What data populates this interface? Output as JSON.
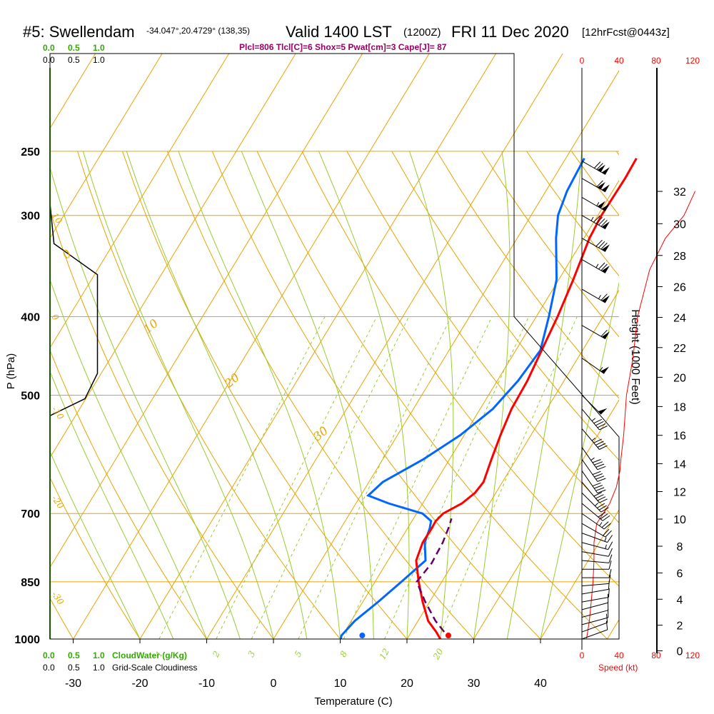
{
  "header": {
    "station": "#5: Swellendam",
    "coords": "-34.047°,20.4729° (138,35)",
    "valid_main": "Valid 1400 LST",
    "valid_z": "(1200Z)",
    "date": "FRI 11 Dec 2020",
    "forecast": "[12hrFcst@0443z]"
  },
  "stats_line": "Plcl=806 Tlcl[C]=6 Shox=5 Pwat[cm]=3 Cape[J]= 87",
  "left_scales": {
    "cloudwater_ticks": [
      "0.0",
      "0.5",
      "1.0"
    ],
    "cloudiness_ticks": [
      "0.0",
      "0.5",
      "1.0"
    ],
    "cloudwater_label": "CloudWater (g/Kg)",
    "cloudiness_label": "Grid-Scale Cloudiness"
  },
  "speed_scale": {
    "ticks": [
      "0",
      "40",
      "80",
      "120"
    ],
    "label": "Speed (kt)"
  },
  "colors": {
    "isotherm": "#e8a400",
    "dry_adiabat": "#e8a400",
    "moist_adiabat": "#99cc33",
    "mixing_ratio": "#99cc33",
    "temperature": "#ff0000",
    "dewpoint": "#0066ff",
    "parcel": "#660066",
    "cloud_green": "#33aa00",
    "speed_red": "#ff0000"
  },
  "chart_data": {
    "type": "line",
    "title": "",
    "xlabel": "Temperature (C)",
    "ylabel": "P (hPa)",
    "y2label": "Height (1000 Feet)",
    "x_ticks": [
      -30,
      -20,
      -10,
      0,
      10,
      20,
      30,
      40
    ],
    "p_ticks": [
      250,
      300,
      400,
      500,
      700,
      850,
      1000
    ],
    "height_ticks": [
      0,
      2,
      4,
      6,
      8,
      10,
      12,
      14,
      16,
      18,
      20,
      22,
      24,
      26,
      28,
      30,
      32
    ],
    "isotherm_labels": [
      {
        "text": "10",
        "p": 300
      },
      {
        "text": "0",
        "p": 400
      },
      {
        "text": "-10",
        "p": 520
      },
      {
        "text": "-20",
        "p": 670
      },
      {
        "text": "-30",
        "p": 880
      }
    ],
    "dry_adiabat_labels": [
      {
        "text": "0",
        "p": 340
      },
      {
        "text": "10",
        "p": 420
      },
      {
        "text": "20",
        "p": 490
      },
      {
        "text": "30",
        "p": 570
      }
    ],
    "mixing_ratio_labels": [
      "1",
      "2",
      "3",
      "5",
      "8",
      "12",
      "20"
    ],
    "temperature": [
      [
        1000,
        25
      ],
      [
        980,
        23.6
      ],
      [
        950,
        21.2
      ],
      [
        900,
        18.3
      ],
      [
        850,
        15.5
      ],
      [
        800,
        12.8
      ],
      [
        760,
        11.8
      ],
      [
        730,
        11.6
      ],
      [
        715,
        11.4
      ],
      [
        700,
        11.7
      ],
      [
        680,
        13.4
      ],
      [
        660,
        14.2
      ],
      [
        640,
        14.3
      ],
      [
        600,
        13.0
      ],
      [
        560,
        11.7
      ],
      [
        520,
        10.5
      ],
      [
        480,
        9.8
      ],
      [
        440,
        8.6
      ],
      [
        400,
        7.3
      ],
      [
        360,
        5.6
      ],
      [
        320,
        3.5
      ],
      [
        300,
        2.8
      ],
      [
        270,
        2.3
      ],
      [
        255,
        1.8
      ]
    ],
    "dewpoint": [
      [
        1000,
        10.1
      ],
      [
        990,
        9.8
      ],
      [
        950,
        10.2
      ],
      [
        900,
        11.6
      ],
      [
        850,
        12.9
      ],
      [
        800,
        14.2
      ],
      [
        760,
        12.1
      ],
      [
        730,
        11.3
      ],
      [
        715,
        10.7
      ],
      [
        700,
        8.6
      ],
      [
        680,
        2.4
      ],
      [
        665,
        -1.5
      ],
      [
        640,
        -0.8
      ],
      [
        600,
        2.8
      ],
      [
        560,
        5.7
      ],
      [
        520,
        7.7
      ],
      [
        480,
        8.4
      ],
      [
        440,
        8.4
      ],
      [
        400,
        6.0
      ],
      [
        360,
        3.1
      ],
      [
        320,
        -1.5
      ],
      [
        300,
        -3.7
      ],
      [
        280,
        -5.0
      ],
      [
        270,
        -5.4
      ],
      [
        255,
        -6.0
      ]
    ],
    "parcel": [
      [
        980,
        24.8
      ],
      [
        950,
        22.3
      ],
      [
        900,
        18.7
      ],
      [
        850,
        15.2
      ],
      [
        806,
        15.4
      ],
      [
        760,
        14.8
      ],
      [
        730,
        14.1
      ],
      [
        710,
        13.5
      ]
    ],
    "surface_markers": {
      "temperature": 26.2,
      "dewpoint": 13.3
    },
    "cloudiness_profile": [
      [
        1000,
        0
      ],
      [
        530,
        0
      ],
      [
        505,
        0.7
      ],
      [
        470,
        0.95
      ],
      [
        400,
        0.95
      ],
      [
        355,
        0.95
      ],
      [
        325,
        0.08
      ],
      [
        290,
        0
      ]
    ],
    "wind_speed_kt": [
      [
        1000,
        5
      ],
      [
        950,
        8
      ],
      [
        900,
        10
      ],
      [
        850,
        12
      ],
      [
        800,
        13
      ],
      [
        760,
        13
      ],
      [
        720,
        16
      ],
      [
        700,
        23
      ],
      [
        680,
        30
      ],
      [
        650,
        37
      ],
      [
        620,
        41
      ],
      [
        600,
        42
      ],
      [
        560,
        45
      ],
      [
        500,
        48
      ],
      [
        450,
        55
      ],
      [
        400,
        60
      ],
      [
        350,
        73
      ],
      [
        320,
        90
      ],
      [
        300,
        110
      ],
      [
        280,
        122
      ]
    ],
    "wind_barbs": [
      {
        "p": 1000,
        "dir": 250,
        "spd": 10
      },
      {
        "p": 980,
        "dir": 250,
        "spd": 10
      },
      {
        "p": 960,
        "dir": 255,
        "spd": 10
      },
      {
        "p": 940,
        "dir": 255,
        "spd": 10
      },
      {
        "p": 920,
        "dir": 255,
        "spd": 10
      },
      {
        "p": 900,
        "dir": 260,
        "spd": 10
      },
      {
        "p": 880,
        "dir": 260,
        "spd": 10
      },
      {
        "p": 860,
        "dir": 265,
        "spd": 10
      },
      {
        "p": 840,
        "dir": 270,
        "spd": 10
      },
      {
        "p": 820,
        "dir": 270,
        "spd": 10
      },
      {
        "p": 800,
        "dir": 275,
        "spd": 10
      },
      {
        "p": 780,
        "dir": 280,
        "spd": 10
      },
      {
        "p": 760,
        "dir": 285,
        "spd": 15
      },
      {
        "p": 740,
        "dir": 290,
        "spd": 15
      },
      {
        "p": 720,
        "dir": 300,
        "spd": 20
      },
      {
        "p": 700,
        "dir": 305,
        "spd": 25
      },
      {
        "p": 680,
        "dir": 310,
        "spd": 30
      },
      {
        "p": 660,
        "dir": 315,
        "spd": 35
      },
      {
        "p": 640,
        "dir": 320,
        "spd": 40
      },
      {
        "p": 620,
        "dir": 325,
        "spd": 40
      },
      {
        "p": 600,
        "dir": 325,
        "spd": 40
      },
      {
        "p": 580,
        "dir": 325,
        "spd": 45
      },
      {
        "p": 550,
        "dir": 320,
        "spd": 45
      },
      {
        "p": 520,
        "dir": 320,
        "spd": 45
      },
      {
        "p": 500,
        "dir": 315,
        "spd": 50
      },
      {
        "p": 450,
        "dir": 305,
        "spd": 55
      },
      {
        "p": 410,
        "dir": 300,
        "spd": 60
      },
      {
        "p": 370,
        "dir": 300,
        "spd": 65
      },
      {
        "p": 340,
        "dir": 300,
        "spd": 75
      },
      {
        "p": 320,
        "dir": 300,
        "spd": 80
      },
      {
        "p": 300,
        "dir": 300,
        "spd": 95
      },
      {
        "p": 285,
        "dir": 300,
        "spd": 105
      },
      {
        "p": 270,
        "dir": 300,
        "spd": 110
      },
      {
        "p": 257,
        "dir": 300,
        "spd": 120
      }
    ]
  }
}
